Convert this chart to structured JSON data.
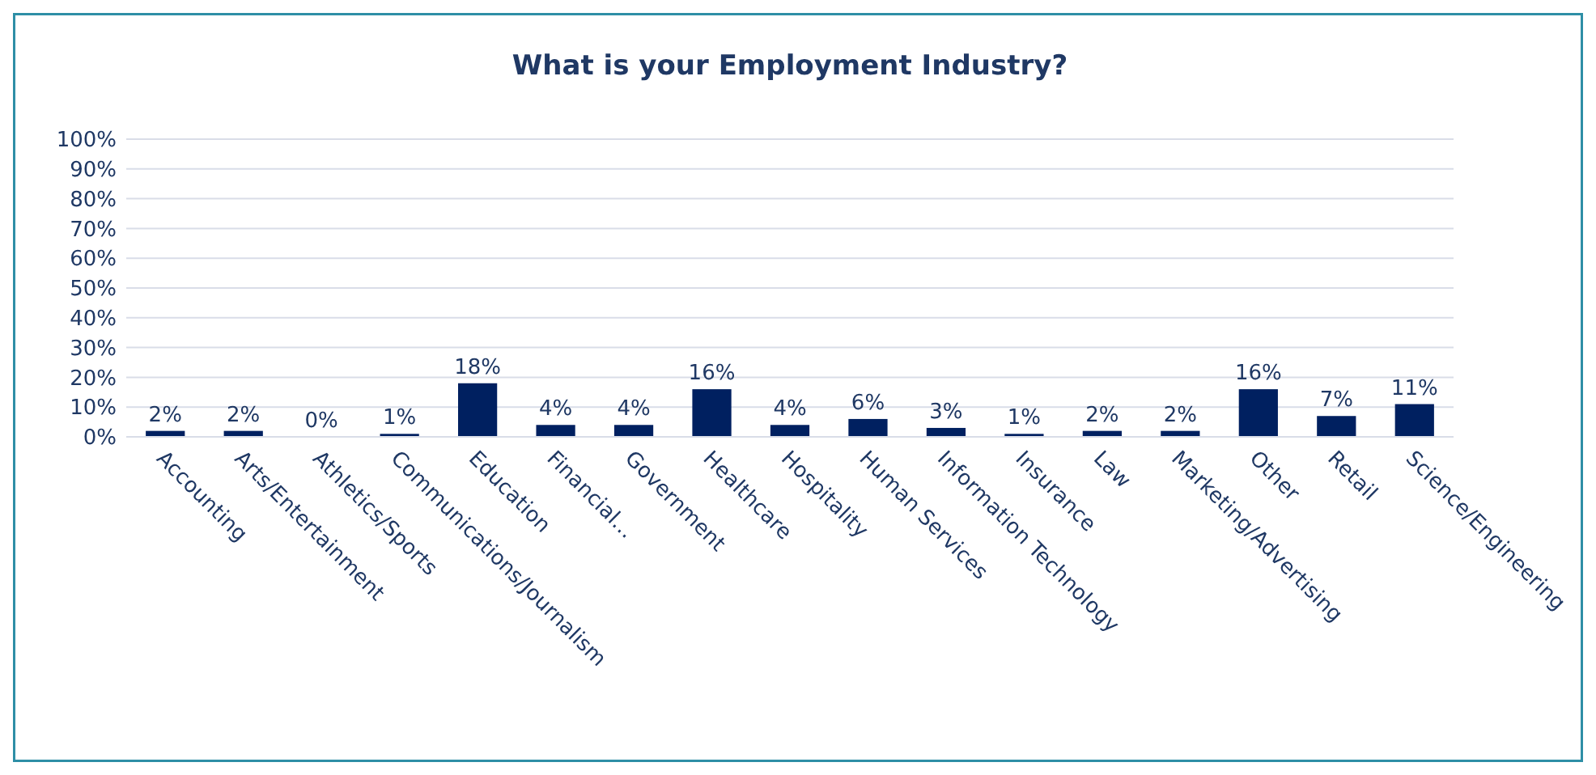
{
  "chart_data": {
    "type": "bar",
    "title": "What is your Employment Industry?",
    "categories": [
      "Accounting",
      "Arts/Entertainment",
      "Athletics/Sports",
      "Communications/Journalism",
      "Education",
      "Financial…",
      "Government",
      "Healthcare",
      "Hospitality",
      "Human Services",
      "Information Technology",
      "Insurance",
      "Law",
      "Marketing/Advertising",
      "Other",
      "Retail",
      "Science/Engineering"
    ],
    "values": [
      2,
      2,
      0,
      1,
      18,
      4,
      4,
      16,
      4,
      6,
      3,
      1,
      2,
      2,
      16,
      7,
      11
    ],
    "value_labels": [
      "2%",
      "2%",
      "0%",
      "1%",
      "18%",
      "4%",
      "4%",
      "16%",
      "4%",
      "6%",
      "3%",
      "1%",
      "2%",
      "2%",
      "16%",
      "7%",
      "11%"
    ],
    "color": "#002060",
    "ylim": [
      0,
      100
    ],
    "yticks": [
      {
        "value": 0,
        "label": "0%"
      },
      {
        "value": 10,
        "label": "10%"
      },
      {
        "value": 20,
        "label": "20%"
      },
      {
        "value": 30,
        "label": "30%"
      },
      {
        "value": 40,
        "label": "40%"
      },
      {
        "value": 50,
        "label": "50%"
      },
      {
        "value": 60,
        "label": "60%"
      },
      {
        "value": 70,
        "label": "70%"
      },
      {
        "value": 80,
        "label": "80%"
      },
      {
        "value": 90,
        "label": "90%"
      },
      {
        "value": 100,
        "label": "100%"
      }
    ],
    "grid": "y"
  }
}
